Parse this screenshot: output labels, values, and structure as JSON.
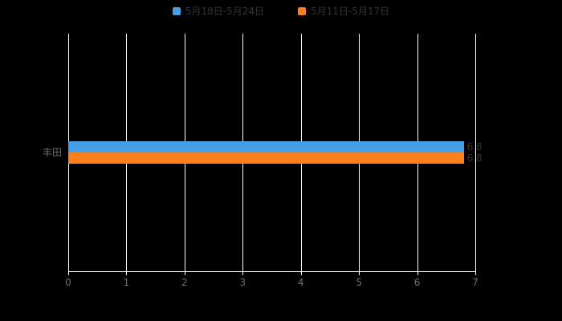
{
  "chart_data": {
    "type": "bar",
    "orientation": "horizontal",
    "title": "",
    "categories": [
      "丰田"
    ],
    "series": [
      {
        "name": "5月18日-5月24日",
        "color": "#45a0e6",
        "values": [
          6.8
        ]
      },
      {
        "name": "5月11日-5月17日",
        "color": "#ff7f1e",
        "values": [
          6.8
        ]
      }
    ],
    "xlim": [
      0,
      7
    ],
    "x_ticks": [
      "0",
      "1",
      "2",
      "3",
      "4",
      "5",
      "6",
      "7"
    ],
    "grid": true,
    "legend_position": "top"
  },
  "colors": {
    "background": "#000000",
    "gridline": "#ffffff",
    "axis": "#ffffff",
    "tick_label": "#6e6e6e",
    "category_label": "#6e6e6e",
    "legend_label": "#333333",
    "value_label": "#333333"
  }
}
